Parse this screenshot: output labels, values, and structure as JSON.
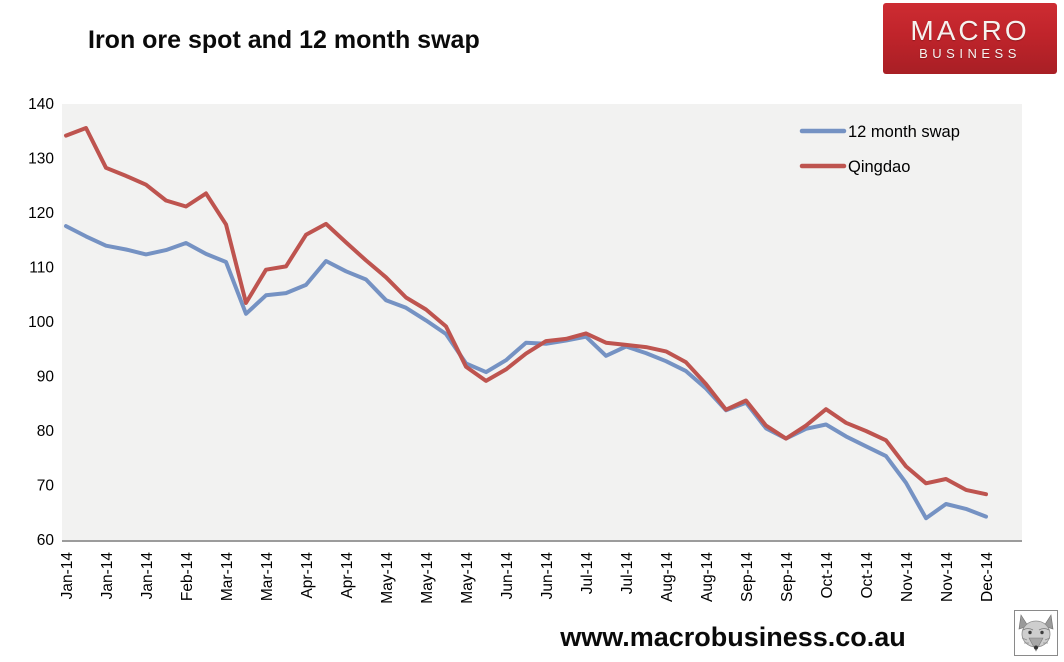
{
  "title": "Iron ore spot and 12 month swap",
  "logo": {
    "line1": "MACRO",
    "line2": "BUSINESS",
    "bg_color": "#c0242b",
    "text_color": "#f6f2ef"
  },
  "footer": {
    "url": "www.macrobusiness.co.au",
    "icon": "wolf-face-icon"
  },
  "chart_data": {
    "type": "line",
    "title": "Iron ore spot and 12 month swap",
    "xlabel": "",
    "ylabel": "",
    "ylim": [
      60,
      140
    ],
    "y_ticks": [
      60,
      70,
      80,
      90,
      100,
      110,
      120,
      130,
      140
    ],
    "grid": false,
    "plot_bg_color": "#f2f2f1",
    "axis_line_color": "#9c9c9c",
    "tick_label_color": "#000000",
    "legend_position": "top-right-inside",
    "points_per_tick": 2,
    "x_tick_labels": [
      "Jan-14",
      "Jan-14",
      "Jan-14",
      "Feb-14",
      "Mar-14",
      "Mar-14",
      "Apr-14",
      "Apr-14",
      "May-14",
      "May-14",
      "May-14",
      "Jun-14",
      "Jun-14",
      "Jul-14",
      "Jul-14",
      "Aug-14",
      "Aug-14",
      "Sep-14",
      "Sep-14",
      "Oct-14",
      "Oct-14",
      "Nov-14",
      "Nov-14",
      "Dec-14"
    ],
    "series": [
      {
        "name": "12 month swap",
        "color": "#7592c3",
        "values": [
          117.6,
          115.7,
          114.0,
          113.3,
          112.4,
          113.2,
          114.5,
          112.5,
          111.0,
          101.5,
          104.9,
          105.3,
          106.8,
          111.2,
          109.3,
          107.8,
          104.0,
          102.6,
          100.3,
          97.8,
          92.4,
          90.8,
          93.0,
          96.2,
          96.0,
          96.6,
          97.3,
          93.8,
          95.5,
          94.3,
          92.8,
          91.0,
          87.8,
          83.8,
          85.2,
          80.5,
          78.6,
          80.4,
          81.2,
          79.0,
          77.2,
          75.4,
          70.5,
          64.0,
          66.6,
          65.7,
          64.3
        ]
      },
      {
        "name": "Qingdao",
        "color": "#be544f",
        "values": [
          134.2,
          135.6,
          128.3,
          126.8,
          125.2,
          122.3,
          121.2,
          123.6,
          117.9,
          103.5,
          109.6,
          110.2,
          116.0,
          118.0,
          114.6,
          111.3,
          108.2,
          104.5,
          102.3,
          99.2,
          91.8,
          89.2,
          91.3,
          94.2,
          96.5,
          96.9,
          97.9,
          96.2,
          95.8,
          95.4,
          94.6,
          92.6,
          88.6,
          83.9,
          85.6,
          81.0,
          78.6,
          81.0,
          84.0,
          81.5,
          80.0,
          78.3,
          73.5,
          70.4,
          71.2,
          69.2,
          68.4
        ]
      }
    ]
  }
}
